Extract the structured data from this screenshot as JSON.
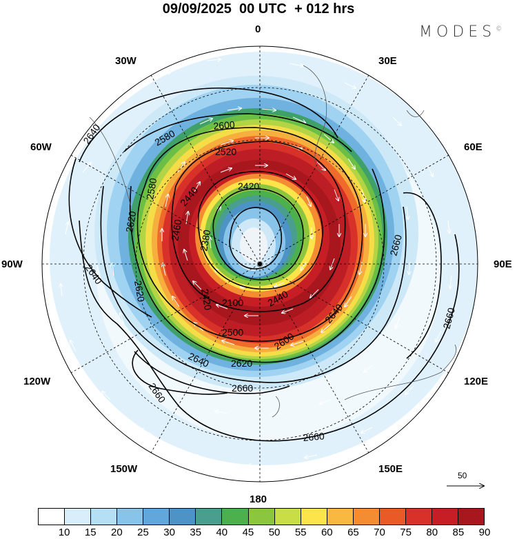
{
  "title": "09/09/2025  00 UTC  + 012 hrs",
  "brand": "MODES",
  "brand_mark": "©",
  "longitude_labels": {
    "n": "0",
    "e30": "30E",
    "e60": "60E",
    "e90": "90E",
    "e120": "120E",
    "e150": "150E",
    "s": "180",
    "w150": "150W",
    "w120": "120W",
    "w90": "90W",
    "w60": "60W",
    "w30": "30W"
  },
  "contours": {
    "c2640a": "2640",
    "c2600": "2600",
    "c2580a": "2580",
    "c2520": "2520",
    "c2580b": "2580",
    "c2620a": "2620",
    "c2640b": "2640",
    "c2620b": "2620",
    "c2460": "2460",
    "c2420a": "2420",
    "c2380": "2380",
    "c2420b": "2420",
    "c2100": "2100",
    "c2440a": "2440",
    "c2500": "2500",
    "c2440b": "2440",
    "c2600b": "2600",
    "c2620c": "2620",
    "c2640c": "2640",
    "c2660a": "2660",
    "c2660b": "2660",
    "c2660c": "2660",
    "c2660d": "2660",
    "c2660e": "2660"
  },
  "vector_scale": "50",
  "colorbar": {
    "colors": [
      "#ffffff",
      "#d9eefb",
      "#b4dff5",
      "#88c3ea",
      "#62a7db",
      "#4d93c5",
      "#4a9e8e",
      "#4cb04c",
      "#8cc63f",
      "#c9dd46",
      "#fce44a",
      "#f9b840",
      "#f48c32",
      "#ea5a27",
      "#d8312a",
      "#c71e26",
      "#a8161e"
    ],
    "labels": [
      "10",
      "15",
      "20",
      "25",
      "30",
      "35",
      "40",
      "45",
      "50",
      "55",
      "60",
      "65",
      "70",
      "75",
      "80",
      "85",
      "90"
    ]
  }
}
